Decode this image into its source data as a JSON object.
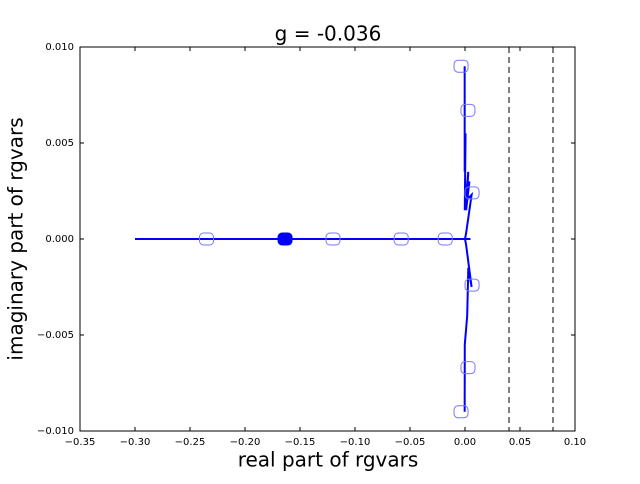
{
  "chart_data": {
    "type": "line",
    "title": "g = -0.036",
    "x_label": "real part of rgvars",
    "y_label": "imaginary part of rgvars",
    "xlim": [
      -0.35,
      0.1
    ],
    "ylim": [
      -0.01,
      0.01
    ],
    "xticks": [
      {
        "value": -0.35,
        "label": "−0.35"
      },
      {
        "value": -0.3,
        "label": "−0.30"
      },
      {
        "value": -0.25,
        "label": "−0.25"
      },
      {
        "value": -0.2,
        "label": "−0.20"
      },
      {
        "value": -0.15,
        "label": "−0.15"
      },
      {
        "value": -0.1,
        "label": "−0.10"
      },
      {
        "value": -0.05,
        "label": "−0.05"
      },
      {
        "value": 0,
        "label": "0.00"
      },
      0.05,
      {
        "value": 0.1,
        "label": "0.10"
      }
    ],
    "yticks": [
      {
        "value": -0.01,
        "label": "−0.010"
      },
      {
        "value": -0.005,
        "label": "−0.005"
      },
      {
        "value": 0,
        "label": "0.000"
      },
      0.005,
      {
        "value": 0.01,
        "label": "0.010"
      }
    ],
    "vlines": [
      0.04,
      0.08
    ],
    "vline_color": "#000000",
    "series": [
      {
        "kind": "line",
        "color": "#0000ff",
        "x": [
          -0.3,
          0.005
        ],
        "y": [
          0,
          0
        ]
      },
      {
        "kind": "line",
        "color": "#0000ff",
        "x": [
          -0.0003,
          -0.0003,
          0.0005,
          -0.0002,
          0.003,
          0.001,
          0.004,
          0.001,
          0.006,
          0.001,
          0,
          0.001,
          0.006,
          0.003,
          0.002,
          -0.0002,
          -0.0003
        ],
        "y": [
          0.009,
          0.0035,
          0.0055,
          0.0015,
          0.0035,
          0.0015,
          0.003,
          0.002,
          0.0023,
          0.0003,
          0,
          -0.0003,
          -0.0025,
          -0.0015,
          -0.004,
          -0.0055,
          -0.009
        ]
      },
      {
        "kind": "markers",
        "color": "#7777ff",
        "x": [
          -0.235,
          -0.12,
          -0.058,
          -0.018,
          -0.0036,
          0.0027,
          0.0064,
          0.0064,
          0.0027,
          -0.0036
        ],
        "y": [
          0,
          0,
          0,
          0,
          0.009,
          0.0067,
          0.0024,
          -0.0024,
          -0.0067,
          -0.009
        ]
      },
      {
        "kind": "filled-markers",
        "color": "#0000ff",
        "x": [
          -0.1636
        ],
        "y": [
          0
        ]
      }
    ]
  }
}
